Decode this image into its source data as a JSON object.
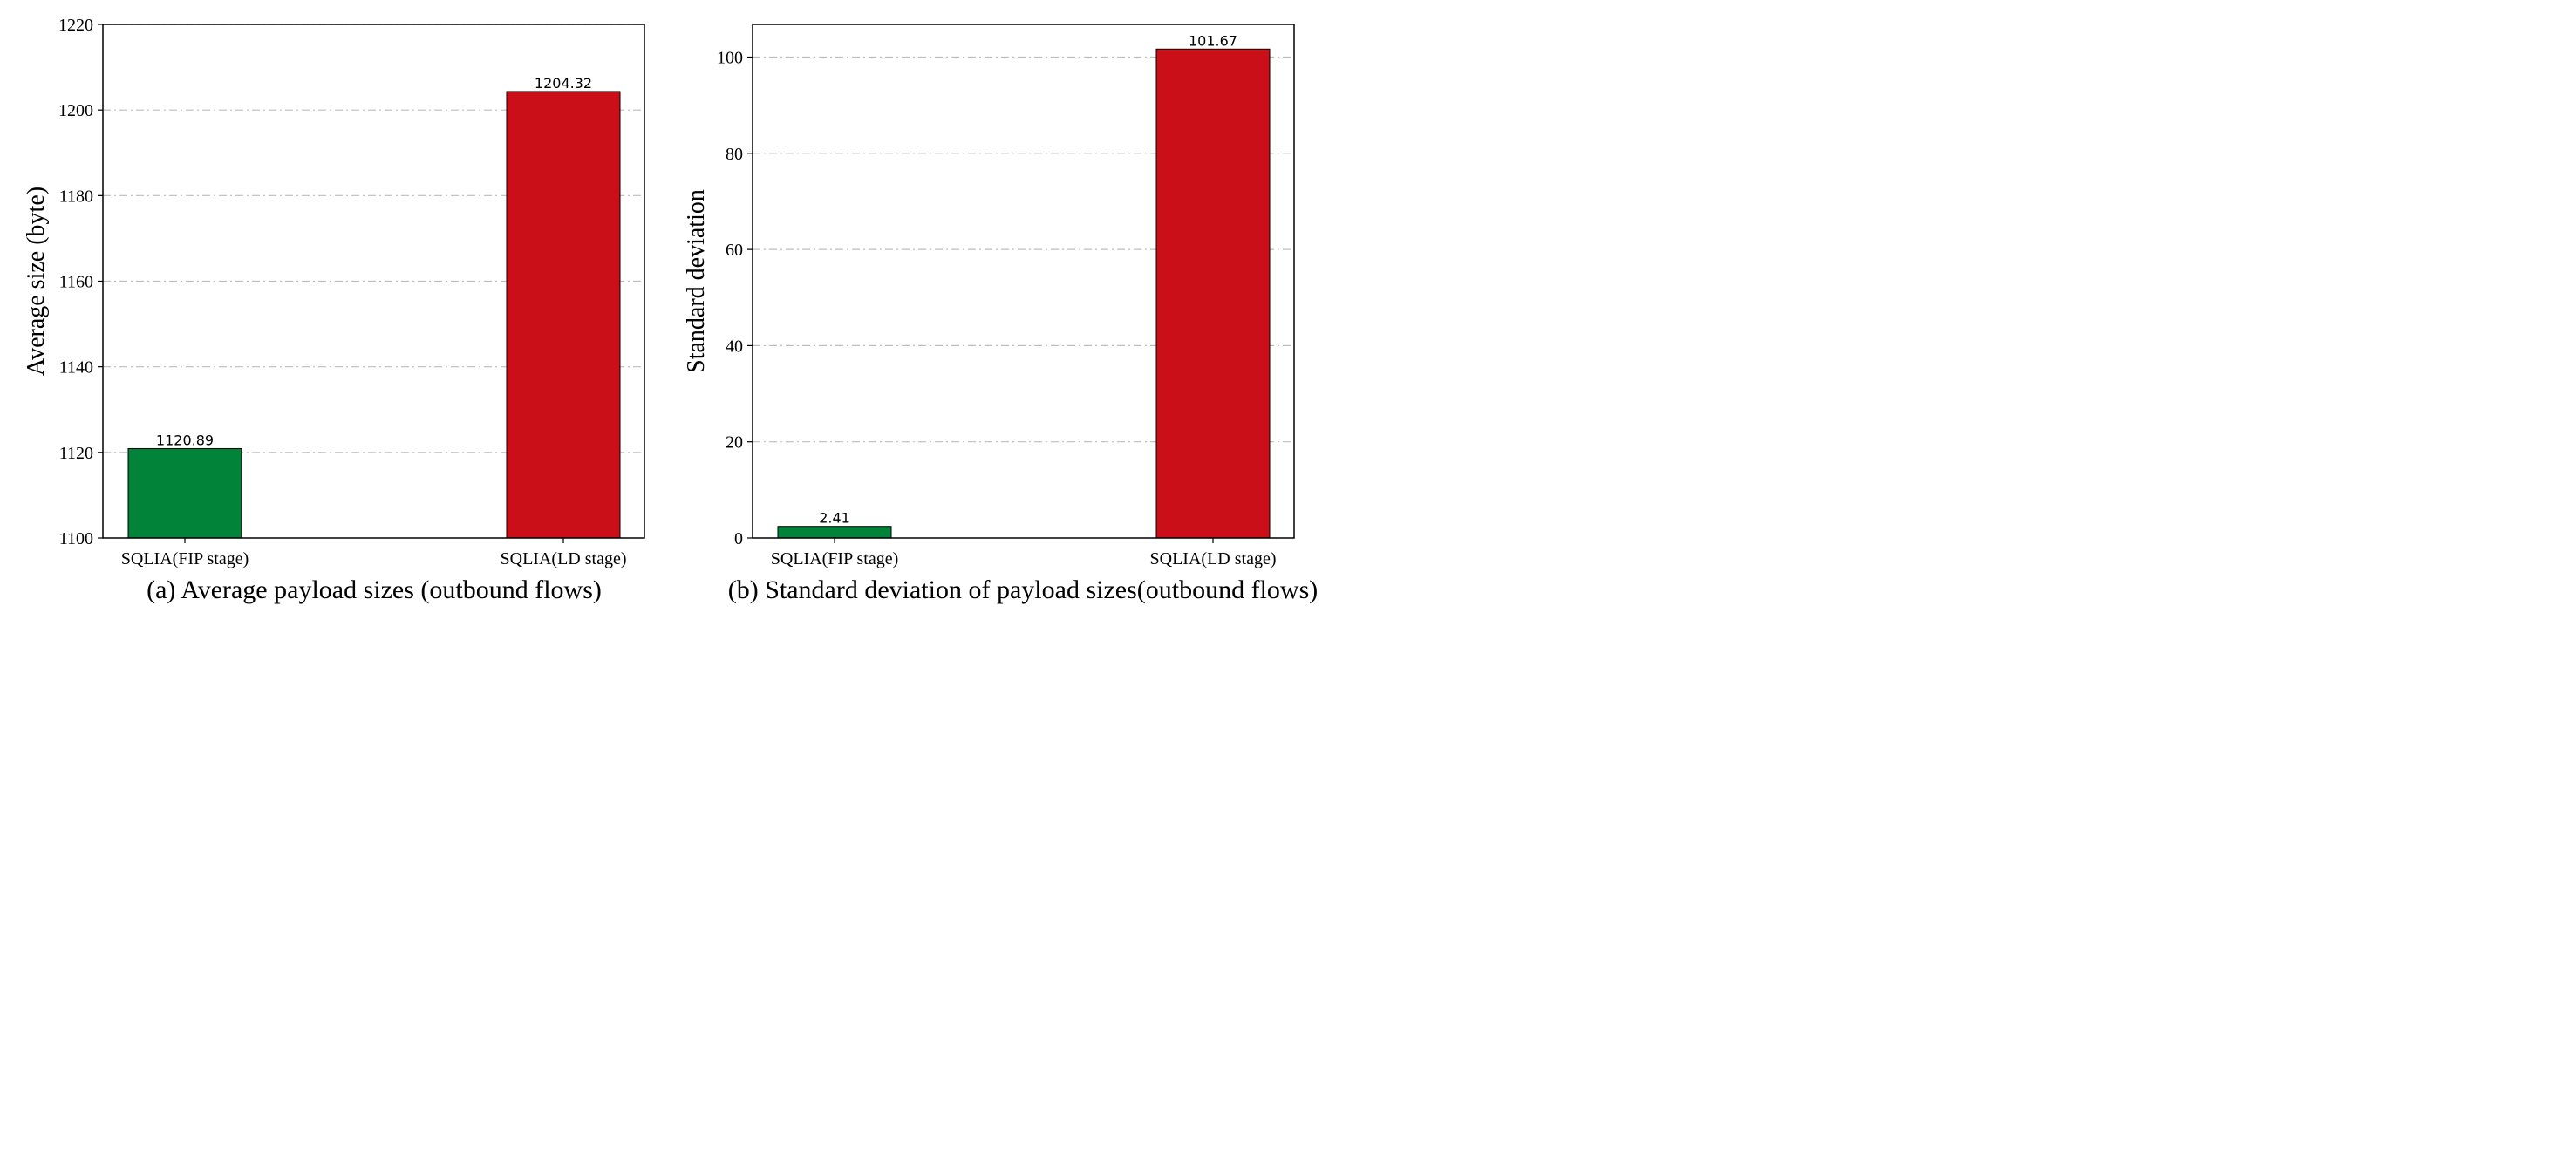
{
  "chart_data": [
    {
      "type": "bar",
      "categories": [
        "SQLIA(FIP stage)",
        "SQLIA(LD stage)"
      ],
      "values": [
        1120.89,
        1204.32
      ],
      "value_labels": [
        "1120.89",
        "1204.32"
      ],
      "colors": [
        "#01843a",
        "#cb0f18"
      ],
      "title": "",
      "caption": "(a) Average payload sizes (outbound flows)",
      "xlabel": "",
      "ylabel": "Average size (byte)",
      "ylim": [
        1100,
        1220
      ],
      "yticks": [
        1100,
        1120,
        1140,
        1160,
        1180,
        1200,
        1220
      ],
      "grid": true
    },
    {
      "type": "bar",
      "categories": [
        "SQLIA(FIP stage)",
        "SQLIA(LD stage)"
      ],
      "values": [
        2.41,
        101.67
      ],
      "value_labels": [
        "2.41",
        "101.67"
      ],
      "colors": [
        "#01843a",
        "#cb0f18"
      ],
      "title": "",
      "caption": "(b) Standard deviation of payload sizes(outbound flows)",
      "xlabel": "",
      "ylabel": "Standard deviation",
      "ylim": [
        0,
        106.8
      ],
      "yticks": [
        0,
        20,
        40,
        60,
        80,
        100
      ],
      "grid": true
    }
  ]
}
